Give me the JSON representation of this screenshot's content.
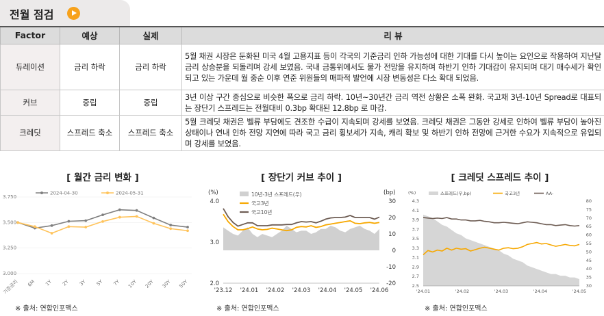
{
  "header": {
    "title": "전월 점검"
  },
  "table": {
    "columns": [
      "Factor",
      "예상",
      "실제",
      "리 뷰"
    ],
    "rows": [
      {
        "factor": "듀레이션",
        "expected": "금리 하락",
        "actual": "금리 하락",
        "review": "5월 채권 시장은 둔화된 미국 4월 고용지표 등이 각국의 기준금리 인하 가능성에 대한 기대를 다시 높이는 요인으로 작용하여 지난달 금리 상승분을 되돌리며 강세 보였음. 국내 금통위에서도 물가 전망을 유지하며 하반기 인하 기대감이 유지되며 대기 매수세가 확인되고 있는 가운데 월 중순 이후 연준 위원들의 매파적 발언에 시장 변동성은 다소 확대 되었음."
      },
      {
        "factor": "커브",
        "expected": "중립",
        "actual": "중립",
        "review": "3년 이상 구간 중심으로 비슷한 폭으로 금리 하락. 10년~30년간 금리 역전 상황은 소폭 완화. 국고채 3년-10년 Spread로 대표되는 장단기 스프레드는 전월대비 0.3bp 확대된 12.8bp 로 마감."
      },
      {
        "factor": "크레딧",
        "expected": "스프레드 축소",
        "actual": "스프레드 축소",
        "review": "5월 크레딧 채권은 벨류 부담에도 견조한 수급이 지속되며 강세를 보였음. 크레딧 채권은 그동안 강세로 인하여 벨류 부담이 높아진 상태이나 연내 인하 전망 지연에 따라 국고 금리 횡보세가 지속, 캐리 확보 및 하반기 인하 전망에 근거한 수요가 지속적으로 유입되며 강세를 보였음."
      }
    ]
  },
  "charts": {
    "yield_curve": {
      "title": "[ 월간 금리 변화 ]",
      "source": "※ 출처: 연합인포맥스"
    },
    "term_spread": {
      "title": "[ 장단기 커브 추이 ]",
      "source": "※ 출처: 연합인포맥스"
    },
    "credit_spread": {
      "title": "[ 크레딧 스프레드 추이 ]",
      "source": "※ 출처: 연합인포맥스"
    }
  },
  "chart_data": [
    {
      "type": "line",
      "title": "[ 월간 금리 변화 ]",
      "categories": [
        "기준금리",
        "6M",
        "1Y",
        "2Y",
        "3Y",
        "5Y",
        "7Y",
        "10Y",
        "20Y",
        "30Y",
        "50Y"
      ],
      "series": [
        {
          "name": "2024-04-30",
          "color": "#7f7f7f",
          "values": [
            3.5,
            3.445,
            3.47,
            3.512,
            3.518,
            3.575,
            3.625,
            3.618,
            3.545,
            3.475,
            3.455
          ]
        },
        {
          "name": "2024-05-31",
          "color": "#ffc35a",
          "values": [
            3.5,
            3.46,
            3.395,
            3.46,
            3.455,
            3.51,
            3.552,
            3.56,
            3.492,
            3.44,
            3.42
          ]
        }
      ],
      "yticks": [
        "3.000",
        "3.250",
        "3.500",
        "3.750"
      ],
      "ylim": [
        3.0,
        3.75
      ]
    },
    {
      "type": "line",
      "title": "[ 장단기 커브 추이 ]",
      "x_ticks": [
        "'23.12",
        "'24.01",
        "'24.02",
        "'24.03",
        "'24.04",
        "'24.05",
        "'24.06"
      ],
      "left_axis": {
        "label": "(%)",
        "ticks": [
          "2.0",
          "3.0",
          "4.0"
        ],
        "range": [
          2.0,
          4.0
        ]
      },
      "right_axis": {
        "label": "(bp)",
        "ticks": [
          "-20",
          "-10",
          "0",
          "10",
          "20",
          "30"
        ],
        "range": [
          -20,
          30
        ]
      },
      "series": [
        {
          "name": "10년-3년 스프레드(우)",
          "type": "area",
          "color": "#d0d0d0",
          "axis": "right",
          "values": [
            14,
            12,
            10,
            9,
            12,
            14,
            10,
            8,
            10,
            9,
            8,
            10,
            12,
            15,
            13,
            11,
            12,
            12,
            10,
            11,
            13,
            13,
            15,
            14,
            12,
            11,
            13,
            14,
            15,
            13,
            12,
            10,
            13
          ]
        },
        {
          "name": "국고3년",
          "type": "line",
          "color": "#f7a800",
          "axis": "left",
          "values": [
            3.68,
            3.5,
            3.38,
            3.3,
            3.3,
            3.33,
            3.37,
            3.32,
            3.3,
            3.31,
            3.34,
            3.32,
            3.3,
            3.28,
            3.3,
            3.36,
            3.38,
            3.37,
            3.4,
            3.36,
            3.38,
            3.42,
            3.44,
            3.46,
            3.48,
            3.5,
            3.52,
            3.46,
            3.45,
            3.47,
            3.48,
            3.46,
            3.48
          ]
        },
        {
          "name": "국고10년",
          "type": "line",
          "color": "#6d5c53",
          "axis": "left",
          "values": [
            3.82,
            3.62,
            3.48,
            3.39,
            3.43,
            3.47,
            3.47,
            3.4,
            3.4,
            3.4,
            3.42,
            3.42,
            3.42,
            3.43,
            3.43,
            3.47,
            3.5,
            3.49,
            3.5,
            3.47,
            3.51,
            3.56,
            3.59,
            3.6,
            3.6,
            3.61,
            3.65,
            3.6,
            3.6,
            3.6,
            3.6,
            3.56,
            3.61
          ]
        }
      ]
    },
    {
      "type": "line",
      "title": "[ 크레딧 스프레드 추이 ]",
      "x_ticks": [
        "'24.01",
        "'24.02",
        "'24.03",
        "'24.04",
        "'24.05"
      ],
      "left_axis": {
        "label": "(%)",
        "ticks": [
          "2.5",
          "2.7",
          "2.9",
          "3.1",
          "3.3",
          "3.5",
          "3.7",
          "3.9",
          "4.1",
          "4.3"
        ],
        "range": [
          2.5,
          4.3
        ]
      },
      "right_axis": {
        "label": "(bp)",
        "ticks": [
          "30",
          "35",
          "40",
          "45",
          "50",
          "55",
          "60",
          "65",
          "70",
          "75",
          "80"
        ],
        "range": [
          30,
          80
        ]
      },
      "series": [
        {
          "name": "스프레드(우,bp)",
          "type": "area",
          "color": "#d6d6d6",
          "axis": "right",
          "values": [
            72,
            71,
            70,
            68,
            66,
            65,
            63,
            61,
            60,
            58,
            57,
            56,
            55,
            54,
            53,
            52,
            51,
            49,
            48,
            46,
            45,
            44,
            42,
            41,
            40,
            39,
            38,
            37,
            37,
            36,
            36,
            35,
            35,
            34
          ]
        },
        {
          "name": "국고3년",
          "type": "line",
          "color": "#f7a800",
          "axis": "left",
          "values": [
            3.16,
            3.25,
            3.22,
            3.26,
            3.24,
            3.3,
            3.26,
            3.3,
            3.28,
            3.29,
            3.24,
            3.27,
            3.3,
            3.32,
            3.3,
            3.28,
            3.26,
            3.3,
            3.31,
            3.29,
            3.3,
            3.33,
            3.38,
            3.4,
            3.42,
            3.39,
            3.4,
            3.37,
            3.34,
            3.36,
            3.38,
            3.36,
            3.35,
            3.38
          ]
        },
        {
          "name": "AA-",
          "type": "line",
          "color": "#6d5c53",
          "axis": "left",
          "values": [
            3.95,
            3.94,
            3.93,
            3.94,
            3.93,
            3.95,
            3.92,
            3.92,
            3.9,
            3.9,
            3.88,
            3.88,
            3.89,
            3.87,
            3.86,
            3.84,
            3.84,
            3.85,
            3.84,
            3.83,
            3.82,
            3.84,
            3.86,
            3.85,
            3.84,
            3.82,
            3.8,
            3.8,
            3.78,
            3.79,
            3.8,
            3.78,
            3.77,
            3.78
          ]
        }
      ]
    }
  ]
}
